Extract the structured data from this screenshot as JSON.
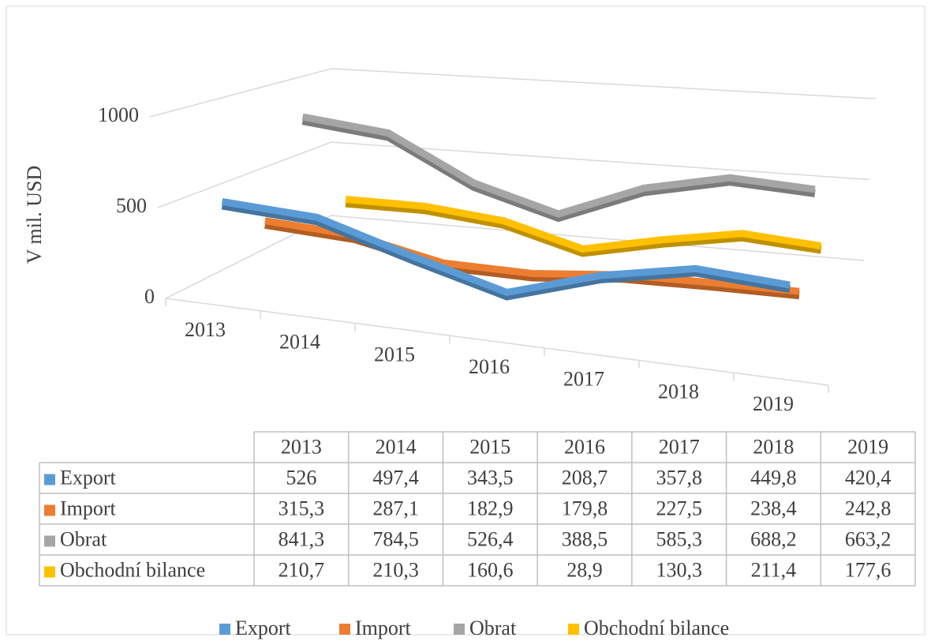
{
  "chart_data": {
    "type": "line",
    "three_d": true,
    "y_label": "V mil. USD",
    "categories": [
      "2013",
      "2014",
      "2015",
      "2016",
      "2017",
      "2018",
      "2019"
    ],
    "series": [
      {
        "name": "Export",
        "color": "#5b9bd5",
        "values": [
          526,
          497.4,
          343.5,
          208.7,
          357.8,
          449.8,
          420.4
        ],
        "value_labels": [
          "526",
          "497,4",
          "343,5",
          "208,7",
          "357,8",
          "449,8",
          "420,4"
        ]
      },
      {
        "name": "Import",
        "color": "#ed7d31",
        "values": [
          315.3,
          287.1,
          182.9,
          179.8,
          227.5,
          238.4,
          242.8
        ],
        "value_labels": [
          "315,3",
          "287,1",
          "182,9",
          "179,8",
          "227,5",
          "238,4",
          "242,8"
        ]
      },
      {
        "name": "Obrat",
        "color": "#a5a5a5",
        "values": [
          841.3,
          784.5,
          526.4,
          388.5,
          585.3,
          688.2,
          663.2
        ],
        "value_labels": [
          "841,3",
          "784,5",
          "526,4",
          "388,5",
          "585,3",
          "688,2",
          "663,2"
        ]
      },
      {
        "name": "Obchodní bilance",
        "color": "#ffc000",
        "values": [
          210.7,
          210.3,
          160.6,
          28.9,
          130.3,
          211.4,
          177.6
        ],
        "value_labels": [
          "210,7",
          "210,3",
          "160,6",
          "28,9",
          "130,3",
          "211,4",
          "177,6"
        ]
      }
    ],
    "ylim": [
      0,
      1000
    ],
    "yticks": [
      0,
      500,
      1000
    ],
    "grid": true,
    "data_table": true,
    "legend": "bottom"
  }
}
